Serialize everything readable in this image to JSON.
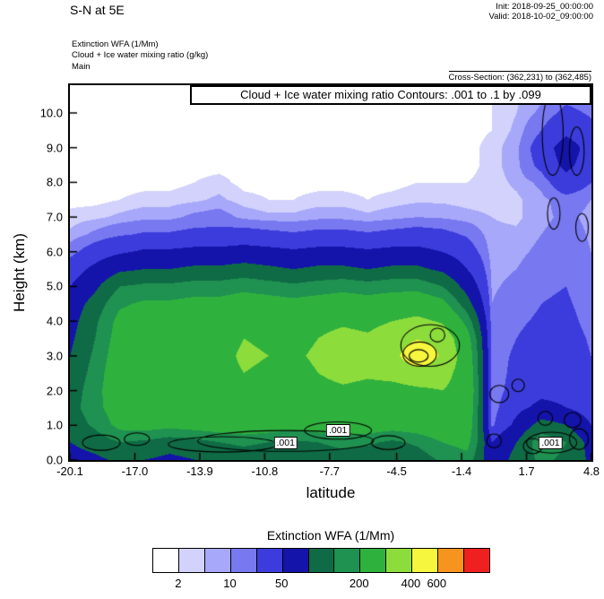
{
  "header": {
    "title": "S-N at 5E",
    "init_label": "Init: 2018-09-25_00:00:00",
    "valid_label": "Valid: 2018-10-02_09:00:00",
    "field_lines": [
      "Extinction WFA  (1/Mm)",
      "Cloud + Ice water mixing ratio   (g/kg)",
      "Main"
    ],
    "cross_section": "Cross-Section: (362,231) to (362,485)"
  },
  "plot": {
    "inner_title": "Cloud + Ice water mixing ratio Contours: .001 to .1 by .099",
    "xlabel": "latitude",
    "ylabel": "Height (km)"
  },
  "chart_data": {
    "type": "heatmap",
    "title": "Cloud + Ice water mixing ratio Contours: .001 to .1 by .099",
    "xlabel": "latitude",
    "ylabel": "Height (km)",
    "xlim": [
      -20.1,
      4.8
    ],
    "ylim": [
      0,
      10.8
    ],
    "x_ticks": [
      "-20.1",
      "-17.0",
      "-13.9",
      "-10.8",
      "-7.7",
      "-4.5",
      "-1.4",
      "1.7",
      "4.8"
    ],
    "y_ticks": [
      0.0,
      1.0,
      2.0,
      3.0,
      4.0,
      5.0,
      6.0,
      7.0,
      8.0,
      9.0,
      10.0
    ],
    "colorbar": {
      "title": "Extinction WFA  (1/Mm)",
      "units": "1/Mm",
      "levels": [
        2,
        5,
        10,
        20,
        50,
        100,
        150,
        200,
        300,
        400,
        600,
        800
      ],
      "colors": [
        "#ffffff",
        "#d2d2fc",
        "#a8a8fa",
        "#7878f0",
        "#3c3cdc",
        "#1414aa",
        "#0f6b45",
        "#1f9150",
        "#2fb13e",
        "#8cdc3c",
        "#f6f63e",
        "#f79420",
        "#f02020"
      ],
      "tick_labels": [
        "2",
        "10",
        "50",
        "200",
        "400",
        "600"
      ],
      "tick_boundary_index": [
        0,
        2,
        4,
        7,
        9,
        10
      ]
    },
    "grid": {
      "x0": -20.1,
      "x1": 4.8,
      "y0": 0.0,
      "y1": 10.5,
      "values": [
        [
          80,
          90,
          110,
          100,
          90,
          100,
          110,
          120,
          110,
          100,
          110,
          120,
          110,
          100,
          120,
          160,
          180,
          60,
          120,
          160,
          140,
          90
        ],
        [
          100,
          120,
          150,
          140,
          120,
          130,
          150,
          160,
          150,
          140,
          150,
          170,
          160,
          140,
          160,
          200,
          220,
          50,
          100,
          180,
          150,
          80
        ],
        [
          120,
          160,
          220,
          230,
          220,
          230,
          240,
          250,
          240,
          230,
          240,
          250,
          240,
          230,
          240,
          260,
          250,
          15,
          60,
          120,
          100,
          50
        ],
        [
          130,
          180,
          240,
          250,
          250,
          260,
          260,
          270,
          260,
          250,
          260,
          270,
          260,
          260,
          270,
          280,
          260,
          12,
          40,
          60,
          50,
          30
        ],
        [
          120,
          180,
          250,
          260,
          260,
          270,
          270,
          280,
          270,
          270,
          280,
          290,
          280,
          280,
          290,
          300,
          270,
          10,
          30,
          40,
          40,
          25
        ],
        [
          110,
          170,
          250,
          270,
          260,
          280,
          280,
          300,
          290,
          280,
          300,
          320,
          310,
          320,
          340,
          330,
          260,
          12,
          25,
          30,
          35,
          22
        ],
        [
          100,
          160,
          240,
          260,
          260,
          270,
          280,
          310,
          300,
          290,
          310,
          330,
          320,
          350,
          520,
          380,
          250,
          15,
          22,
          28,
          30,
          20
        ],
        [
          90,
          150,
          230,
          250,
          250,
          260,
          270,
          300,
          290,
          280,
          300,
          320,
          310,
          340,
          390,
          360,
          230,
          14,
          20,
          25,
          28,
          18
        ],
        [
          80,
          140,
          220,
          240,
          240,
          250,
          250,
          280,
          270,
          260,
          280,
          290,
          280,
          300,
          320,
          290,
          180,
          12,
          18,
          22,
          25,
          15
        ],
        [
          70,
          120,
          190,
          210,
          210,
          220,
          220,
          240,
          230,
          220,
          230,
          240,
          230,
          240,
          250,
          220,
          120,
          10,
          15,
          20,
          22,
          14
        ],
        [
          50,
          90,
          150,
          160,
          160,
          170,
          170,
          180,
          170,
          160,
          170,
          180,
          170,
          180,
          180,
          150,
          80,
          9,
          12,
          18,
          20,
          12
        ],
        [
          30,
          60,
          90,
          100,
          100,
          110,
          110,
          120,
          110,
          100,
          110,
          110,
          100,
          110,
          110,
          90,
          50,
          8,
          10,
          15,
          18,
          11
        ],
        [
          15,
          30,
          45,
          55,
          55,
          60,
          60,
          65,
          60,
          55,
          60,
          60,
          55,
          60,
          60,
          50,
          30,
          7,
          8,
          12,
          15,
          10
        ],
        [
          6,
          12,
          18,
          22,
          22,
          25,
          25,
          28,
          25,
          22,
          25,
          25,
          22,
          25,
          28,
          25,
          18,
          6,
          6,
          10,
          14,
          9
        ],
        [
          3,
          4,
          6,
          8,
          8,
          12,
          14,
          8,
          6,
          6,
          8,
          8,
          6,
          8,
          10,
          9,
          7,
          5,
          4,
          8,
          12,
          8
        ],
        [
          1,
          1,
          2,
          3,
          3,
          4,
          6,
          3,
          2,
          2,
          3,
          3,
          2,
          3,
          4,
          4,
          3,
          3,
          4,
          8,
          14,
          10
        ],
        [
          0,
          0,
          1,
          1,
          1,
          2,
          3,
          1,
          1,
          1,
          1,
          1,
          1,
          1,
          2,
          2,
          2,
          3,
          6,
          12,
          35,
          20
        ],
        [
          0,
          0,
          0,
          1,
          1,
          1,
          1,
          1,
          0,
          0,
          1,
          1,
          1,
          1,
          1,
          1,
          1,
          3,
          8,
          25,
          60,
          30
        ],
        [
          0,
          0,
          0,
          0,
          0,
          1,
          1,
          0,
          0,
          0,
          0,
          0,
          0,
          0,
          1,
          1,
          1,
          3,
          8,
          30,
          70,
          35
        ],
        [
          0,
          0,
          0,
          0,
          0,
          0,
          0,
          0,
          0,
          0,
          0,
          0,
          0,
          0,
          0,
          1,
          1,
          2,
          6,
          20,
          40,
          25
        ],
        [
          0,
          0,
          0,
          0,
          0,
          0,
          0,
          0,
          0,
          0,
          0,
          0,
          0,
          0,
          0,
          0,
          1,
          2,
          5,
          12,
          25,
          18
        ],
        [
          0,
          0,
          0,
          0,
          0,
          0,
          0,
          0,
          0,
          0,
          0,
          0,
          0,
          0,
          0,
          0,
          0,
          2,
          4,
          8,
          15,
          12
        ]
      ]
    },
    "contour_labels": [
      {
        "x": -9.8,
        "y": 0.5,
        "text": ".001"
      },
      {
        "x": -7.3,
        "y": 0.85,
        "text": ".001"
      },
      {
        "x": 2.85,
        "y": 0.5,
        "text": ".001"
      }
    ],
    "contour_ellipses": [
      [
        -18.6,
        0.5,
        0.9,
        0.22
      ],
      [
        -16.9,
        0.6,
        0.6,
        0.18
      ],
      [
        -12.8,
        0.45,
        2.6,
        0.22
      ],
      [
        -9.8,
        0.55,
        4.2,
        0.3
      ],
      [
        -7.3,
        0.85,
        1.6,
        0.25
      ],
      [
        -4.9,
        0.5,
        0.8,
        0.2
      ],
      [
        -3.4,
        3.05,
        0.8,
        0.35
      ],
      [
        -3.45,
        3.0,
        0.45,
        0.18
      ],
      [
        -2.9,
        3.3,
        1.4,
        0.6
      ],
      [
        -2.55,
        3.6,
        0.35,
        0.2
      ],
      [
        0.4,
        1.9,
        0.45,
        0.25
      ],
      [
        1.3,
        2.15,
        0.3,
        0.18
      ],
      [
        0.15,
        0.55,
        0.35,
        0.2
      ],
      [
        2.0,
        0.4,
        0.45,
        0.22
      ],
      [
        2.9,
        0.5,
        1.2,
        0.3
      ],
      [
        4.2,
        0.6,
        0.45,
        0.3
      ],
      [
        2.6,
        1.2,
        0.35,
        0.2
      ],
      [
        3.9,
        1.15,
        0.4,
        0.22
      ],
      [
        2.95,
        9.4,
        0.5,
        1.2
      ],
      [
        3.0,
        7.1,
        0.3,
        0.45
      ],
      [
        4.35,
        6.7,
        0.3,
        0.4
      ],
      [
        4.1,
        8.9,
        0.35,
        0.7
      ]
    ]
  }
}
